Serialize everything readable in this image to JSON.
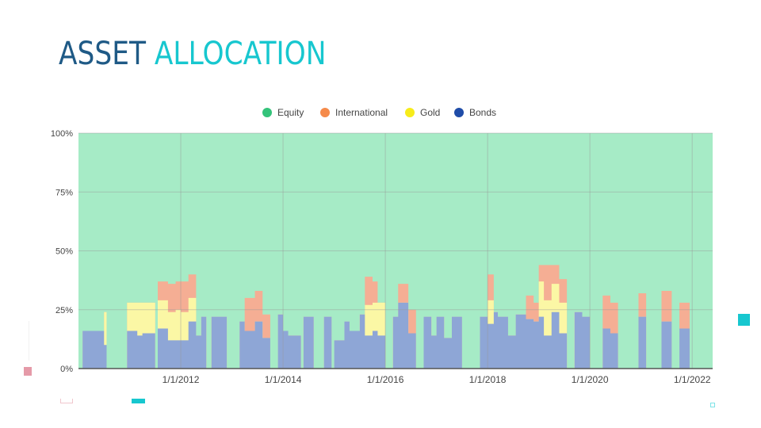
{
  "slide": {
    "title_part1": "ASSET",
    "title_part2": "ALLOCATION",
    "colors": {
      "title_part1": "#1f5a86",
      "title_part2": "#17c7cf",
      "accent_pink": "#e59aa8",
      "accent_teal": "#17c7cf"
    }
  },
  "chart_data": {
    "type": "area",
    "stacked": true,
    "percent": true,
    "legend_position": "top",
    "grid": true,
    "ylim": [
      0,
      100
    ],
    "xlim": [
      2010.0,
      2022.4
    ],
    "x_ticks": [
      2012,
      2014,
      2016,
      2018,
      2020,
      2022
    ],
    "x_tick_labels": [
      "1/1/2012",
      "1/1/2014",
      "1/1/2016",
      "1/1/2018",
      "1/1/2020",
      "1/1/2022"
    ],
    "y_ticks": [
      0,
      25,
      50,
      75,
      100
    ],
    "y_tick_labels": [
      "0%",
      "25%",
      "50%",
      "75%",
      "100%"
    ],
    "legend": [
      {
        "name": "Equity",
        "color": "#a6ebc6",
        "marker": "#34c37a"
      },
      {
        "name": "International",
        "color": "#f5ae94",
        "marker": "#f58a4a"
      },
      {
        "name": "Gold",
        "color": "#fbf7a5",
        "marker": "#f7ec1a"
      },
      {
        "name": "Bonds",
        "color": "#8ea6d6",
        "marker": "#1f4ca8"
      }
    ],
    "x": [
      2010.0,
      2010.08,
      2010.32,
      2010.5,
      2010.55,
      2010.9,
      2010.95,
      2011.15,
      2011.25,
      2011.5,
      2011.55,
      2011.75,
      2011.9,
      2012.0,
      2012.15,
      2012.3,
      2012.4,
      2012.5,
      2012.6,
      2012.9,
      2013.15,
      2013.25,
      2013.45,
      2013.6,
      2013.75,
      2013.9,
      2014.0,
      2014.1,
      2014.35,
      2014.4,
      2014.6,
      2014.8,
      2014.95,
      2015.0,
      2015.2,
      2015.3,
      2015.5,
      2015.6,
      2015.75,
      2015.85,
      2016.0,
      2016.15,
      2016.25,
      2016.45,
      2016.6,
      2016.75,
      2016.9,
      2017.0,
      2017.15,
      2017.3,
      2017.5,
      2017.7,
      2017.85,
      2018.0,
      2018.12,
      2018.2,
      2018.4,
      2018.55,
      2018.75,
      2018.9,
      2019.0,
      2019.1,
      2019.25,
      2019.4,
      2019.55,
      2019.7,
      2019.85,
      2020.0,
      2020.15,
      2020.25,
      2020.4,
      2020.55,
      2020.75,
      2020.95,
      2021.1,
      2021.25,
      2021.4,
      2021.6,
      2021.75,
      2021.95,
      2022.1,
      2022.25,
      2022.4
    ],
    "series": [
      {
        "name": "Bonds",
        "values": [
          0,
          16,
          16,
          10,
          0,
          0,
          16,
          14,
          15,
          0,
          17,
          12,
          12,
          12,
          20,
          14,
          22,
          0,
          22,
          0,
          20,
          16,
          20,
          13,
          0,
          23,
          16,
          14,
          0,
          22,
          0,
          22,
          0,
          12,
          20,
          16,
          23,
          14,
          16,
          14,
          0,
          22,
          28,
          15,
          0,
          22,
          14,
          22,
          13,
          22,
          0,
          0,
          22,
          19,
          24,
          22,
          14,
          23,
          21,
          20,
          22,
          14,
          24,
          15,
          0,
          24,
          22,
          0,
          0,
          17,
          15,
          0,
          0,
          22,
          0,
          0,
          20,
          0,
          17,
          0,
          0,
          0,
          0
        ]
      },
      {
        "name": "Gold",
        "values": [
          0,
          0,
          0,
          14,
          0,
          0,
          12,
          14,
          13,
          0,
          12,
          12,
          13,
          12,
          10,
          0,
          0,
          0,
          0,
          0,
          0,
          0,
          0,
          0,
          0,
          0,
          0,
          0,
          0,
          0,
          0,
          0,
          0,
          0,
          0,
          0,
          0,
          13,
          12,
          14,
          0,
          0,
          0,
          0,
          0,
          0,
          0,
          0,
          0,
          0,
          0,
          0,
          0,
          10,
          0,
          0,
          0,
          0,
          0,
          0,
          15,
          15,
          12,
          13,
          0,
          0,
          0,
          0,
          0,
          0,
          0,
          0,
          0,
          0,
          0,
          0,
          0,
          0,
          0,
          0,
          0,
          0,
          0
        ]
      },
      {
        "name": "International",
        "values": [
          0,
          0,
          0,
          0,
          0,
          0,
          0,
          0,
          0,
          0,
          8,
          12,
          12,
          13,
          10,
          0,
          0,
          0,
          0,
          0,
          0,
          14,
          13,
          10,
          0,
          0,
          0,
          0,
          0,
          0,
          0,
          0,
          0,
          0,
          0,
          0,
          0,
          12,
          9,
          0,
          0,
          0,
          8,
          10,
          0,
          0,
          0,
          0,
          0,
          0,
          0,
          0,
          0,
          11,
          0,
          0,
          0,
          0,
          10,
          8,
          7,
          15,
          8,
          10,
          0,
          0,
          0,
          0,
          0,
          14,
          13,
          0,
          0,
          10,
          0,
          0,
          13,
          0,
          11,
          0,
          0,
          0,
          0
        ]
      },
      {
        "name": "Equity",
        "values": [
          100,
          84,
          84,
          76,
          100,
          100,
          72,
          72,
          72,
          100,
          63,
          64,
          63,
          63,
          60,
          86,
          78,
          100,
          78,
          100,
          80,
          70,
          67,
          77,
          100,
          77,
          84,
          86,
          100,
          78,
          100,
          78,
          100,
          88,
          80,
          84,
          77,
          61,
          63,
          72,
          100,
          78,
          64,
          75,
          100,
          78,
          86,
          78,
          87,
          78,
          100,
          100,
          78,
          60,
          76,
          78,
          86,
          77,
          69,
          72,
          56,
          56,
          56,
          62,
          100,
          76,
          78,
          100,
          100,
          69,
          72,
          100,
          100,
          68,
          100,
          100,
          67,
          100,
          72,
          100,
          100,
          100,
          100
        ]
      }
    ]
  }
}
